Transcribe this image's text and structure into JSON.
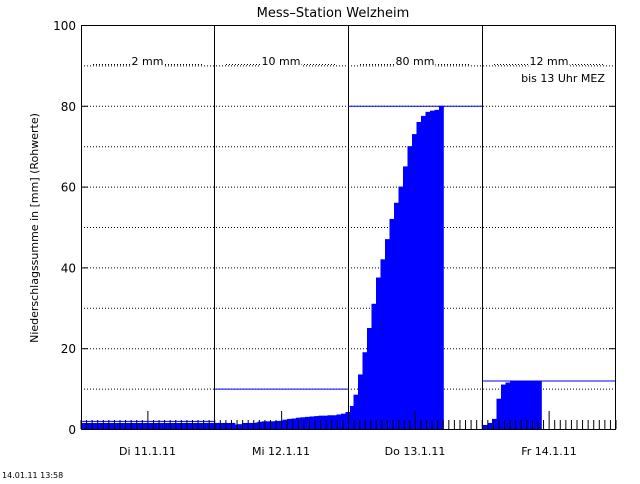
{
  "chart_data": {
    "type": "bar",
    "title": "Mess–Station Welzheim",
    "xlabel": "",
    "ylabel": "Niederschlagssumme in [mm] (Rohwerte)",
    "ylim": [
      0,
      100
    ],
    "yticks": [
      0,
      20,
      40,
      60,
      80,
      100
    ],
    "grid": true,
    "days": [
      {
        "label": "Di 11.1.11",
        "total_label": "2 mm",
        "note": "",
        "total": 2,
        "cumulative": [
          1.5,
          1.5,
          1.5,
          1.5,
          1.5,
          1.5,
          1.5,
          1.5,
          1.5,
          1.5,
          1.5,
          1.5,
          1.5,
          1.5,
          1.5,
          1.5,
          1.5,
          1.5,
          1.5,
          1.5,
          1.5,
          1.5,
          1.5,
          1.5,
          1.5,
          1.5,
          1.5,
          1.5,
          1.5,
          1.5,
          1.5,
          1.5,
          1.5,
          1.5,
          0.2,
          0.2,
          0.5,
          1,
          1.5,
          1.8,
          1.9,
          1.9,
          1.9,
          2,
          2,
          2
        ]
      },
      {
        "label": "Mi 12.1.11",
        "total_label": "10 mm",
        "note": "",
        "total": 10,
        "cumulative": [
          0.3,
          0.5,
          0.5,
          0.6,
          1.1,
          1.2,
          1.5,
          1.5,
          1.5,
          1.6,
          1.7,
          1.8,
          1.8,
          1.9,
          2,
          2.3,
          2.5,
          2.6,
          2.8,
          2.9,
          3,
          3.1,
          3.2,
          3.3,
          3.3,
          3.4,
          3.4,
          3.6,
          3.8,
          4.2,
          5.7,
          7,
          8.3,
          10
        ]
      },
      {
        "label": "Do 13.1.11",
        "total_label": "80 mm",
        "note": "",
        "total": 80,
        "cumulative": [
          3,
          8.5,
          13.5,
          19,
          25,
          31,
          37.5,
          42,
          47,
          52,
          56,
          60,
          65,
          70,
          73,
          76,
          77.5,
          78.5,
          78.8,
          79,
          80
        ]
      },
      {
        "label": "Fr 14.1.11",
        "total_label": "12 mm",
        "note": "bis 13 Uhr MEZ",
        "total": 12,
        "cumulative": [
          1,
          1.5,
          2.5,
          7.5,
          11,
          11.5,
          11.8,
          12,
          12,
          12,
          12,
          12,
          12
        ]
      }
    ]
  },
  "timestamp": "14.01.11 13:58"
}
